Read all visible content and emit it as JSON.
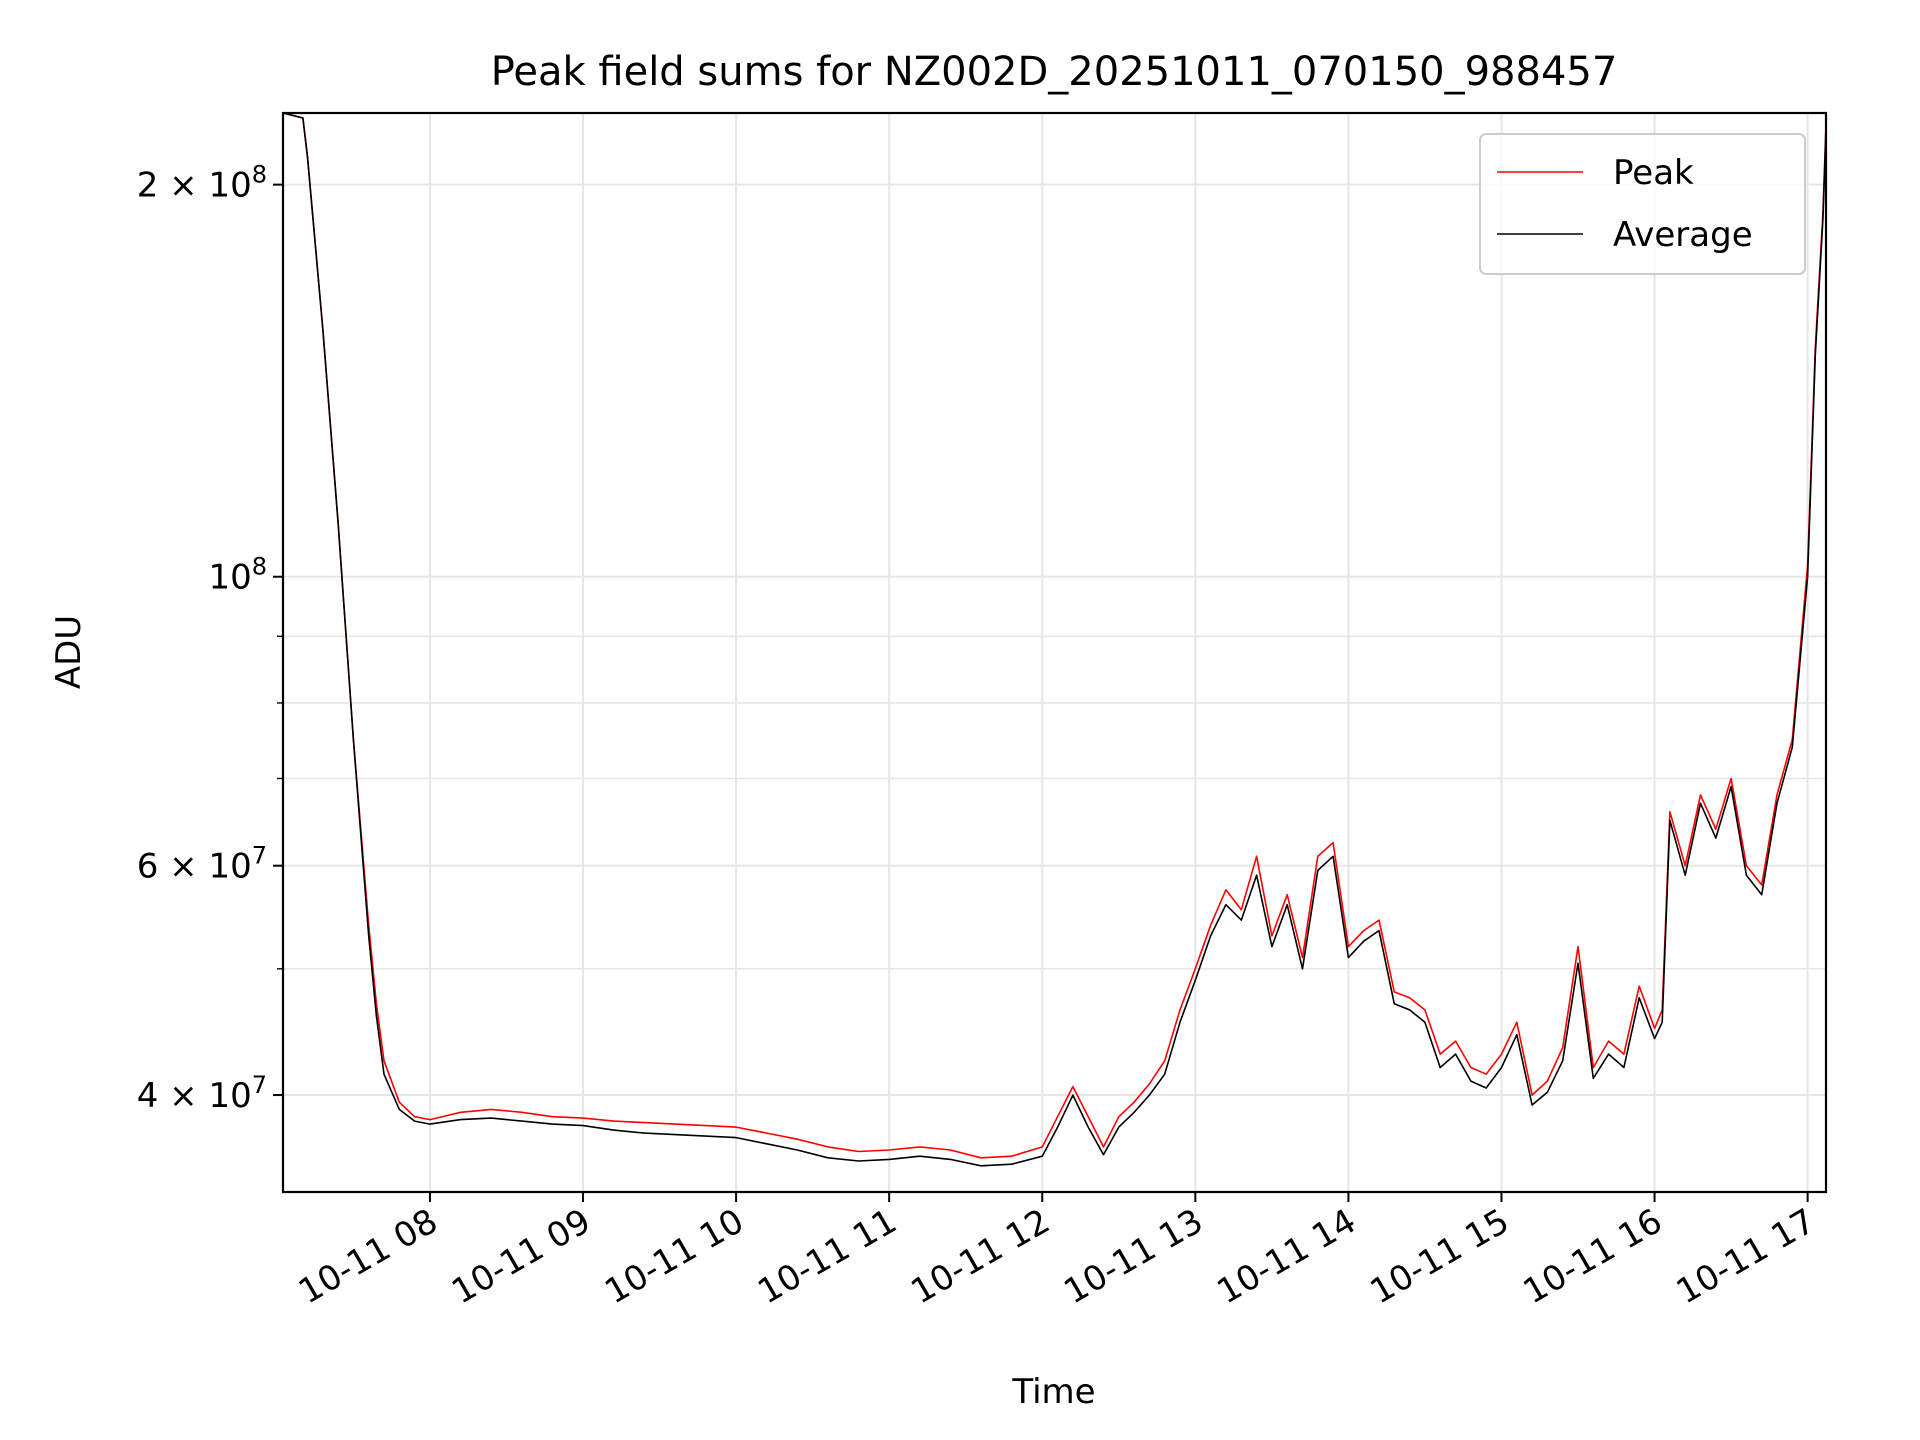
{
  "chart_data": {
    "type": "line",
    "title": "Peak field sums for NZ002D_20251011_070150_988457",
    "xlabel": "Time",
    "ylabel": "ADU",
    "x_unit": "hours since 10-11 00:00",
    "xlim": [
      7.04,
      17.12
    ],
    "ylim": [
      33700000,
      227000000
    ],
    "yscale": "log",
    "grid": true,
    "legend_position": "top-right",
    "x_ticks": [
      {
        "value": 8,
        "label": "10-11 08"
      },
      {
        "value": 9,
        "label": "10-11 09"
      },
      {
        "value": 10,
        "label": "10-11 10"
      },
      {
        "value": 11,
        "label": "10-11 11"
      },
      {
        "value": 12,
        "label": "10-11 12"
      },
      {
        "value": 13,
        "label": "10-11 13"
      },
      {
        "value": 14,
        "label": "10-11 14"
      },
      {
        "value": 15,
        "label": "10-11 15"
      },
      {
        "value": 16,
        "label": "10-11 16"
      },
      {
        "value": 17,
        "label": "10-11 17"
      }
    ],
    "y_ticks": [
      {
        "value": 40000000,
        "base": "4 × 10",
        "exp": "7"
      },
      {
        "value": 60000000,
        "base": "6 × 10",
        "exp": "7"
      },
      {
        "value": 100000000,
        "base": "10",
        "exp": "8"
      },
      {
        "value": 200000000,
        "base": "2 × 10",
        "exp": "8"
      }
    ],
    "y_minor_ticks": [
      50000000,
      70000000,
      80000000,
      90000000
    ],
    "series": [
      {
        "name": "Peak",
        "color": "#ff0000",
        "x": [
          7.04,
          7.17,
          7.2,
          7.3,
          7.4,
          7.5,
          7.6,
          7.65,
          7.7,
          7.8,
          7.9,
          8.0,
          8.2,
          8.4,
          8.6,
          8.8,
          9.0,
          9.2,
          9.4,
          9.6,
          9.8,
          10.0,
          10.2,
          10.4,
          10.6,
          10.8,
          11.0,
          11.2,
          11.4,
          11.6,
          11.8,
          12.0,
          12.1,
          12.2,
          12.3,
          12.4,
          12.5,
          12.6,
          12.7,
          12.8,
          12.9,
          13.0,
          13.1,
          13.2,
          13.3,
          13.4,
          13.5,
          13.6,
          13.7,
          13.8,
          13.9,
          14.0,
          14.1,
          14.2,
          14.3,
          14.4,
          14.5,
          14.6,
          14.7,
          14.8,
          14.9,
          15.0,
          15.1,
          15.2,
          15.3,
          15.4,
          15.5,
          15.6,
          15.7,
          15.8,
          15.9,
          16.0,
          16.05,
          16.1,
          16.2,
          16.3,
          16.4,
          16.5,
          16.6,
          16.7,
          16.8,
          16.9,
          17.0,
          17.05,
          17.1,
          17.12
        ],
        "y": [
          227000000,
          225000000,
          210000000,
          155000000,
          110000000,
          75000000,
          54000000,
          47000000,
          42500000,
          39500000,
          38500000,
          38300000,
          38800000,
          39000000,
          38800000,
          38500000,
          38400000,
          38200000,
          38100000,
          38000000,
          37900000,
          37800000,
          37400000,
          37000000,
          36500000,
          36200000,
          36300000,
          36500000,
          36300000,
          35800000,
          35900000,
          36500000,
          38500000,
          40600000,
          38500000,
          36500000,
          38500000,
          39500000,
          40800000,
          42500000,
          46500000,
          50000000,
          54000000,
          57500000,
          55500000,
          61000000,
          53000000,
          57000000,
          51000000,
          61000000,
          62500000,
          52000000,
          53500000,
          54500000,
          48000000,
          47500000,
          46500000,
          43000000,
          44000000,
          42000000,
          41500000,
          43000000,
          45500000,
          40000000,
          41000000,
          43500000,
          52000000,
          42000000,
          44000000,
          43000000,
          48500000,
          45000000,
          46500000,
          66000000,
          60000000,
          68000000,
          64000000,
          70000000,
          60000000,
          58000000,
          68000000,
          75000000,
          102000000,
          150000000,
          190000000,
          222000000
        ]
      },
      {
        "name": "Average",
        "color": "#000000",
        "x": [
          7.04,
          7.17,
          7.2,
          7.3,
          7.4,
          7.5,
          7.6,
          7.65,
          7.7,
          7.8,
          7.9,
          8.0,
          8.2,
          8.4,
          8.6,
          8.8,
          9.0,
          9.2,
          9.4,
          9.6,
          9.8,
          10.0,
          10.2,
          10.4,
          10.6,
          10.8,
          11.0,
          11.2,
          11.4,
          11.6,
          11.8,
          12.0,
          12.1,
          12.2,
          12.3,
          12.4,
          12.5,
          12.6,
          12.7,
          12.8,
          12.9,
          13.0,
          13.1,
          13.2,
          13.3,
          13.4,
          13.5,
          13.6,
          13.7,
          13.8,
          13.9,
          14.0,
          14.1,
          14.2,
          14.3,
          14.4,
          14.5,
          14.6,
          14.7,
          14.8,
          14.9,
          15.0,
          15.1,
          15.2,
          15.3,
          15.4,
          15.5,
          15.6,
          15.7,
          15.8,
          15.9,
          16.0,
          16.05,
          16.1,
          16.2,
          16.3,
          16.4,
          16.5,
          16.6,
          16.7,
          16.8,
          16.9,
          17.0,
          17.05,
          17.1,
          17.12
        ],
        "y": [
          227000000,
          225000000,
          210000000,
          155000000,
          110000000,
          75000000,
          53000000,
          46000000,
          41500000,
          39000000,
          38200000,
          38000000,
          38300000,
          38400000,
          38200000,
          38000000,
          37900000,
          37600000,
          37400000,
          37300000,
          37200000,
          37100000,
          36700000,
          36300000,
          35800000,
          35600000,
          35700000,
          35900000,
          35700000,
          35300000,
          35400000,
          35900000,
          37800000,
          40000000,
          37800000,
          36000000,
          37800000,
          38800000,
          40000000,
          41500000,
          45500000,
          49000000,
          53000000,
          56000000,
          54500000,
          59000000,
          52000000,
          56000000,
          50000000,
          59500000,
          61000000,
          51000000,
          52500000,
          53500000,
          47000000,
          46500000,
          45500000,
          42000000,
          43000000,
          41000000,
          40500000,
          42000000,
          44500000,
          39300000,
          40200000,
          42500000,
          50500000,
          41200000,
          43000000,
          42000000,
          47500000,
          44200000,
          45500000,
          65000000,
          59000000,
          67000000,
          63000000,
          69000000,
          59000000,
          57000000,
          67000000,
          74000000,
          100000000,
          148000000,
          188000000,
          221000000
        ]
      }
    ]
  }
}
